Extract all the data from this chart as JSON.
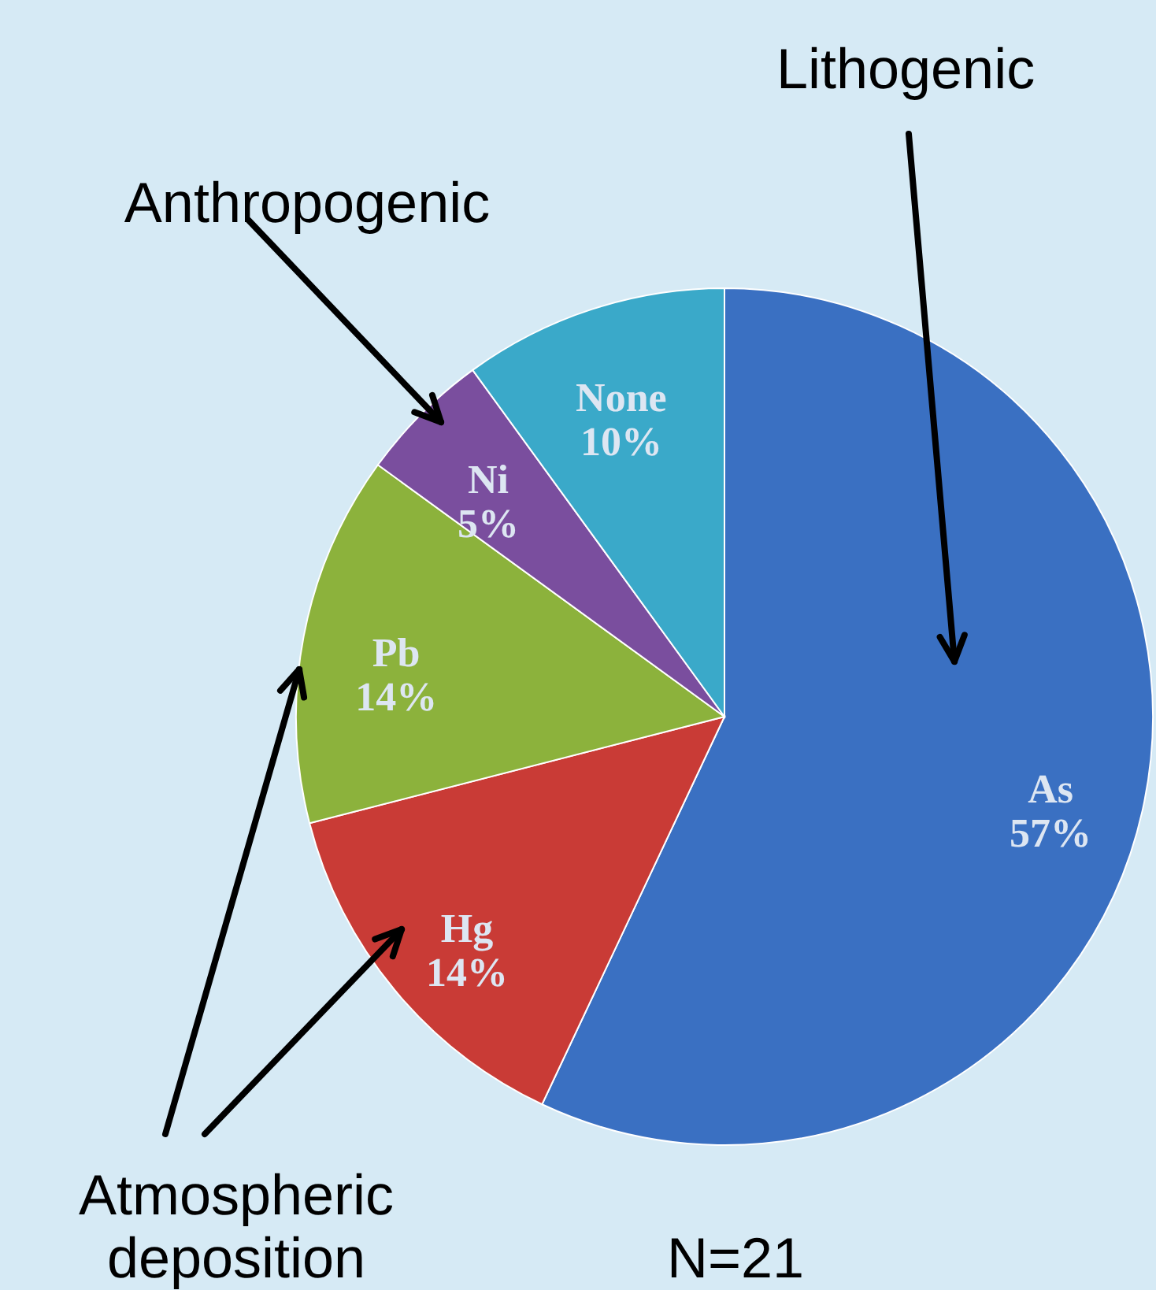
{
  "chart_data": {
    "type": "pie",
    "categories": [
      "As",
      "Hg",
      "Pb",
      "Ni",
      "None"
    ],
    "values": [
      57,
      14,
      14,
      5,
      10
    ],
    "value_labels": [
      "57%",
      "14%",
      "14%",
      "5%",
      "10%"
    ],
    "colors": [
      "#3a70c2",
      "#c93b36",
      "#8cb23c",
      "#7a4e9e",
      "#3aa9c9"
    ],
    "annotations": [
      "Lithogenic",
      "Anthropogenic",
      "Atmospheric deposition",
      "N=21"
    ]
  }
}
